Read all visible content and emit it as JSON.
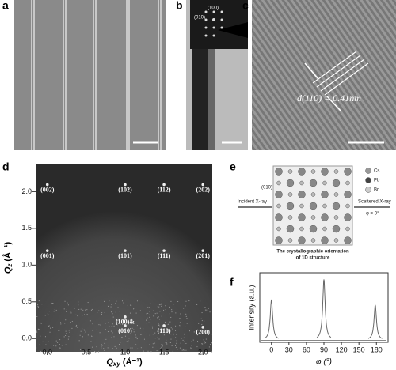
{
  "panels": {
    "a": {
      "letter": "a"
    },
    "b": {
      "letter": "b",
      "inset_labels": [
        "(100)",
        "(010)"
      ]
    },
    "c": {
      "letter": "c",
      "annotation": "d(110) = 0.41nm"
    },
    "d": {
      "letter": "d",
      "xlabel_symbol": "Q",
      "xlabel_sub": "xy",
      "xlabel_unit": " (Å⁻¹)",
      "ylabel_symbol": "Q",
      "ylabel_sub": "z",
      "ylabel_unit": " (Å⁻¹)",
      "xlim": [
        -0.15,
        2.12
      ],
      "ylim": [
        -0.18,
        2.37
      ],
      "xticks": [
        {
          "value": 0,
          "label": "0.0"
        },
        {
          "value": 0.5,
          "label": "0.5"
        },
        {
          "value": 1,
          "label": "1.0"
        },
        {
          "value": 1.5,
          "label": "1.5"
        },
        {
          "value": 2,
          "label": "2.0"
        }
      ],
      "yticks": [
        {
          "value": 0,
          "label": "0.0"
        },
        {
          "value": 0.5,
          "label": "0.5"
        },
        {
          "value": 1,
          "label": "1.0"
        },
        {
          "value": 1.5,
          "label": "1.5"
        },
        {
          "value": 2,
          "label": "2.0"
        }
      ],
      "peaks": [
        {
          "label": "(002)",
          "qxy": 0,
          "qz": 2.02
        },
        {
          "label": "(102)",
          "qxy": 1,
          "qz": 2.02
        },
        {
          "label": "(112)",
          "qxy": 1.5,
          "qz": 2.02
        },
        {
          "label": "(202)",
          "qxy": 2,
          "qz": 2.02
        },
        {
          "label": "(001)",
          "qxy": 0,
          "qz": 1.12
        },
        {
          "label": "(101)",
          "qxy": 1,
          "qz": 1.12
        },
        {
          "label": "(111)",
          "qxy": 1.5,
          "qz": 1.12
        },
        {
          "label": "(201)",
          "qxy": 2,
          "qz": 1.12
        },
        {
          "label": "(100)&",
          "qxy": 1,
          "qz": 0.22
        },
        {
          "label": "(010)",
          "qxy": 1,
          "qz": 0.1
        },
        {
          "label": "(110)",
          "qxy": 1.5,
          "qz": 0.1
        },
        {
          "label": "(200)",
          "qxy": 2,
          "qz": 0.08
        }
      ]
    },
    "e": {
      "letter": "e",
      "legend": [
        "Cs",
        "Pb",
        "Br"
      ],
      "incident": "Incident X-ray",
      "scattered": "Scattered X-ray",
      "phi": "φ = 0°",
      "plane": "(010)",
      "caption": [
        "The crystallographic orientation",
        "of 1D structure"
      ]
    },
    "f": {
      "letter": "f",
      "ylabel": "Intensity (a.u.)",
      "xlabel": "φ (°)",
      "xlim": [
        -20,
        200
      ],
      "xticks": [
        0,
        30,
        60,
        90,
        120,
        150,
        180
      ],
      "peaks": [
        {
          "x": 0,
          "height": 0.6
        },
        {
          "x": 90,
          "height": 0.9
        },
        {
          "x": 178,
          "height": 0.52
        }
      ]
    }
  }
}
